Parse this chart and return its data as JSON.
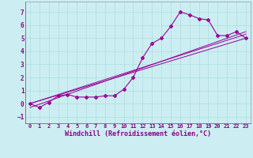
{
  "xlabel": "Windchill (Refroidissement éolien,°C)",
  "bg_color": "#cceef2",
  "line_color": "#990099",
  "xlim": [
    -0.5,
    23.5
  ],
  "ylim": [
    -1.5,
    7.8
  ],
  "x_ticks": [
    0,
    1,
    2,
    3,
    4,
    5,
    6,
    7,
    8,
    9,
    10,
    11,
    12,
    13,
    14,
    15,
    16,
    17,
    18,
    19,
    20,
    21,
    22,
    23
  ],
  "y_ticks": [
    -1,
    0,
    1,
    2,
    3,
    4,
    5,
    6,
    7
  ],
  "series1_x": [
    0,
    1,
    2,
    3,
    4,
    5,
    6,
    7,
    8,
    9,
    10,
    11,
    12,
    13,
    14,
    15,
    16,
    17,
    18,
    19,
    20,
    21,
    22,
    23
  ],
  "series1_y": [
    0.0,
    -0.3,
    0.1,
    0.6,
    0.7,
    0.5,
    0.5,
    0.5,
    0.6,
    0.6,
    1.1,
    2.0,
    3.5,
    4.6,
    5.0,
    5.9,
    7.0,
    6.8,
    6.5,
    6.4,
    5.2,
    5.2,
    5.5,
    5.0
  ],
  "series2_x": [
    0,
    23
  ],
  "series2_y": [
    0.0,
    5.3
  ],
  "series3_x": [
    0,
    23
  ],
  "series3_y": [
    -0.3,
    5.5
  ],
  "series4_x": [
    0,
    23
  ],
  "series4_y": [
    0.0,
    5.0
  ],
  "tick_color": "#880088",
  "grid_color": "#aadddd",
  "xlabel_fontsize": 6.0,
  "tick_fontsize": 5.0
}
